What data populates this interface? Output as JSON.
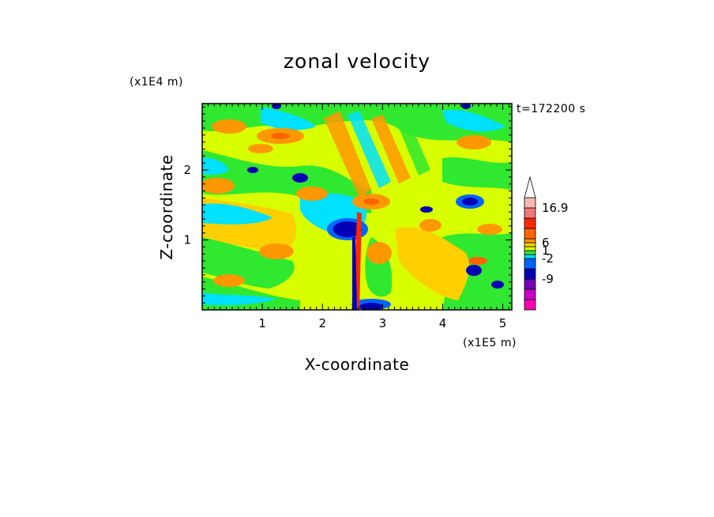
{
  "chart_data": {
    "type": "heatmap",
    "title": "zonal velocity",
    "time_label": "t=172200 s",
    "xlabel": "X-coordinate",
    "ylabel": "Z-coordinate",
    "x_scale_label": "(x1E5 m)",
    "y_scale_label": "(x1E4 m)",
    "xlim": [
      0,
      5.15
    ],
    "ylim": [
      0,
      2.95
    ],
    "x_ticks": [
      "1",
      "2",
      "3",
      "4",
      "5"
    ],
    "y_ticks": [
      "1",
      "2"
    ],
    "x_tick_values": [
      1,
      2,
      3,
      4,
      5
    ],
    "y_tick_values": [
      1,
      2
    ],
    "colorbar": {
      "labels": [
        "16.9",
        "6",
        "1",
        "-2",
        "-9"
      ],
      "label_levels": [
        13,
        9,
        7,
        5,
        3
      ],
      "colors": [
        "#ff00b0",
        "#c800c8",
        "#7800b4",
        "#0000b4",
        "#0064ff",
        "#00e0ff",
        "#30e830",
        "#d8ff00",
        "#ffd000",
        "#ff9800",
        "#ff6400",
        "#ff2800",
        "#f07878",
        "#f8b8b0"
      ],
      "extend": "max"
    }
  }
}
